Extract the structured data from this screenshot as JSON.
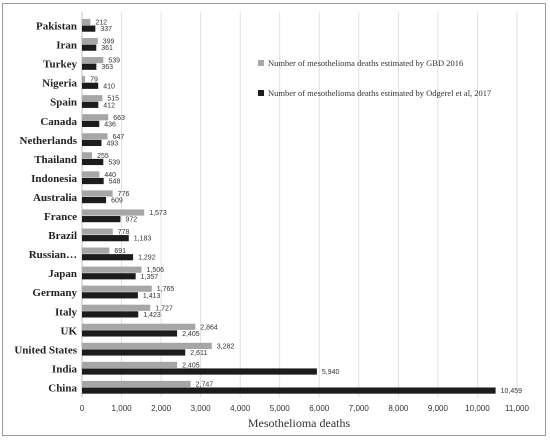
{
  "chart_data": {
    "type": "bar",
    "orientation": "horizontal",
    "title": "",
    "xlabel": "Mesothelioma deaths",
    "ylabel": "",
    "xlim": [
      0,
      11000
    ],
    "xticks": [
      "0",
      "1,000",
      "2,000",
      "3,000",
      "4,000",
      "5,000",
      "6,000",
      "7,000",
      "8,000",
      "9,000",
      "10,000",
      "11,000"
    ],
    "grid": "vertical",
    "legend_position": "right",
    "categories": [
      "Pakistan",
      "Iran",
      "Turkey",
      "Nigeria",
      "Spain",
      "Canada",
      "Netherlands",
      "Thailand",
      "Indonesia",
      "Australia",
      "France",
      "Brazil",
      "Russian…",
      "Japan",
      "Germany",
      "Italy",
      "UK",
      "United States",
      "India",
      "China"
    ],
    "series": [
      {
        "name": "Number of mesothelioma deaths estimated by GBD 2016",
        "color": "#a6a6a6",
        "values": [
          212,
          399,
          539,
          79,
          515,
          663,
          647,
          255,
          440,
          776,
          1573,
          778,
          691,
          1506,
          1765,
          1727,
          2864,
          3282,
          2405,
          2747
        ],
        "labels": [
          "212",
          "399",
          "539",
          "79",
          "515",
          "663",
          "647",
          "255",
          "440",
          "776",
          "1,573",
          "778",
          "691",
          "1,506",
          "1,765",
          "1,727",
          "2,864",
          "3,282",
          "2,405",
          "2,747"
        ]
      },
      {
        "name": "Number of mesothelioma deaths estimated by Odgerel et al, 2017",
        "color": "#1c1c1c",
        "values": [
          337,
          361,
          363,
          410,
          412,
          436,
          493,
          539,
          548,
          609,
          972,
          1183,
          1292,
          1357,
          1413,
          1423,
          2405,
          2611,
          5940,
          10459
        ],
        "labels": [
          "337",
          "361",
          "363",
          "410",
          "412",
          "436",
          "493",
          "539",
          "548",
          "609",
          "972",
          "1,183",
          "1,292",
          "1,357",
          "1,413",
          "1,423",
          "2,405",
          "2,611",
          "5,940",
          "10,459"
        ]
      }
    ]
  }
}
